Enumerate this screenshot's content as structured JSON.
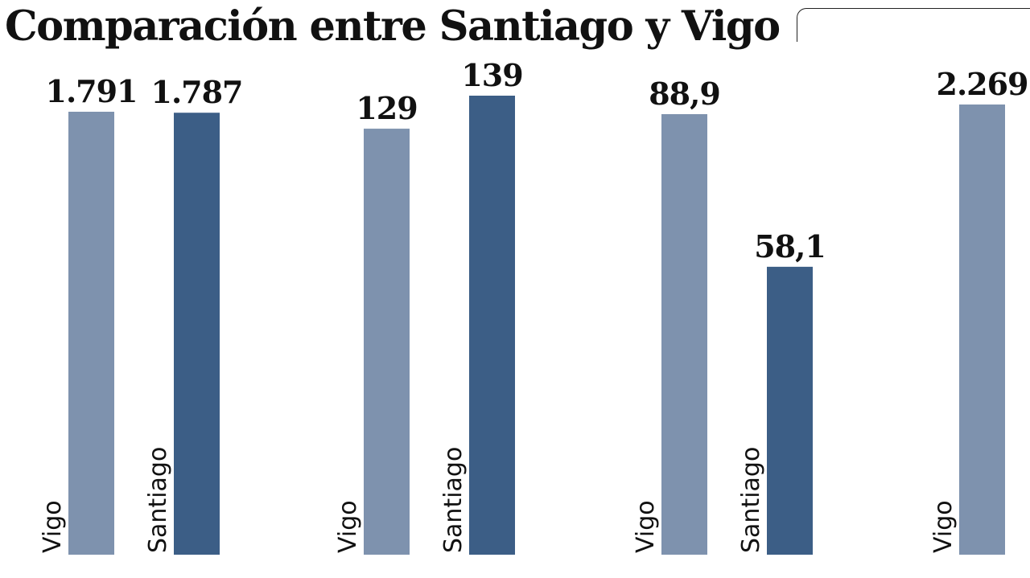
{
  "title": "Comparación entre Santiago y Vigo",
  "colors": {
    "Vigo": "#7e92ae",
    "Santiago": "#3c5e86"
  },
  "chart_data": [
    {
      "type": "bar",
      "categories": [
        "Vigo",
        "Santiago"
      ],
      "values": [
        1791,
        1787
      ],
      "value_labels": [
        "1.791",
        "1.787"
      ]
    },
    {
      "type": "bar",
      "categories": [
        "Vigo",
        "Santiago"
      ],
      "values": [
        129,
        139
      ],
      "value_labels": [
        "129",
        "139"
      ]
    },
    {
      "type": "bar",
      "categories": [
        "Vigo",
        "Santiago"
      ],
      "values": [
        88.9,
        58.1
      ],
      "value_labels": [
        "88,9",
        "58,1"
      ]
    },
    {
      "type": "bar",
      "categories": [
        "Vigo"
      ],
      "values": [
        2269
      ],
      "value_labels": [
        "2.269"
      ]
    }
  ]
}
